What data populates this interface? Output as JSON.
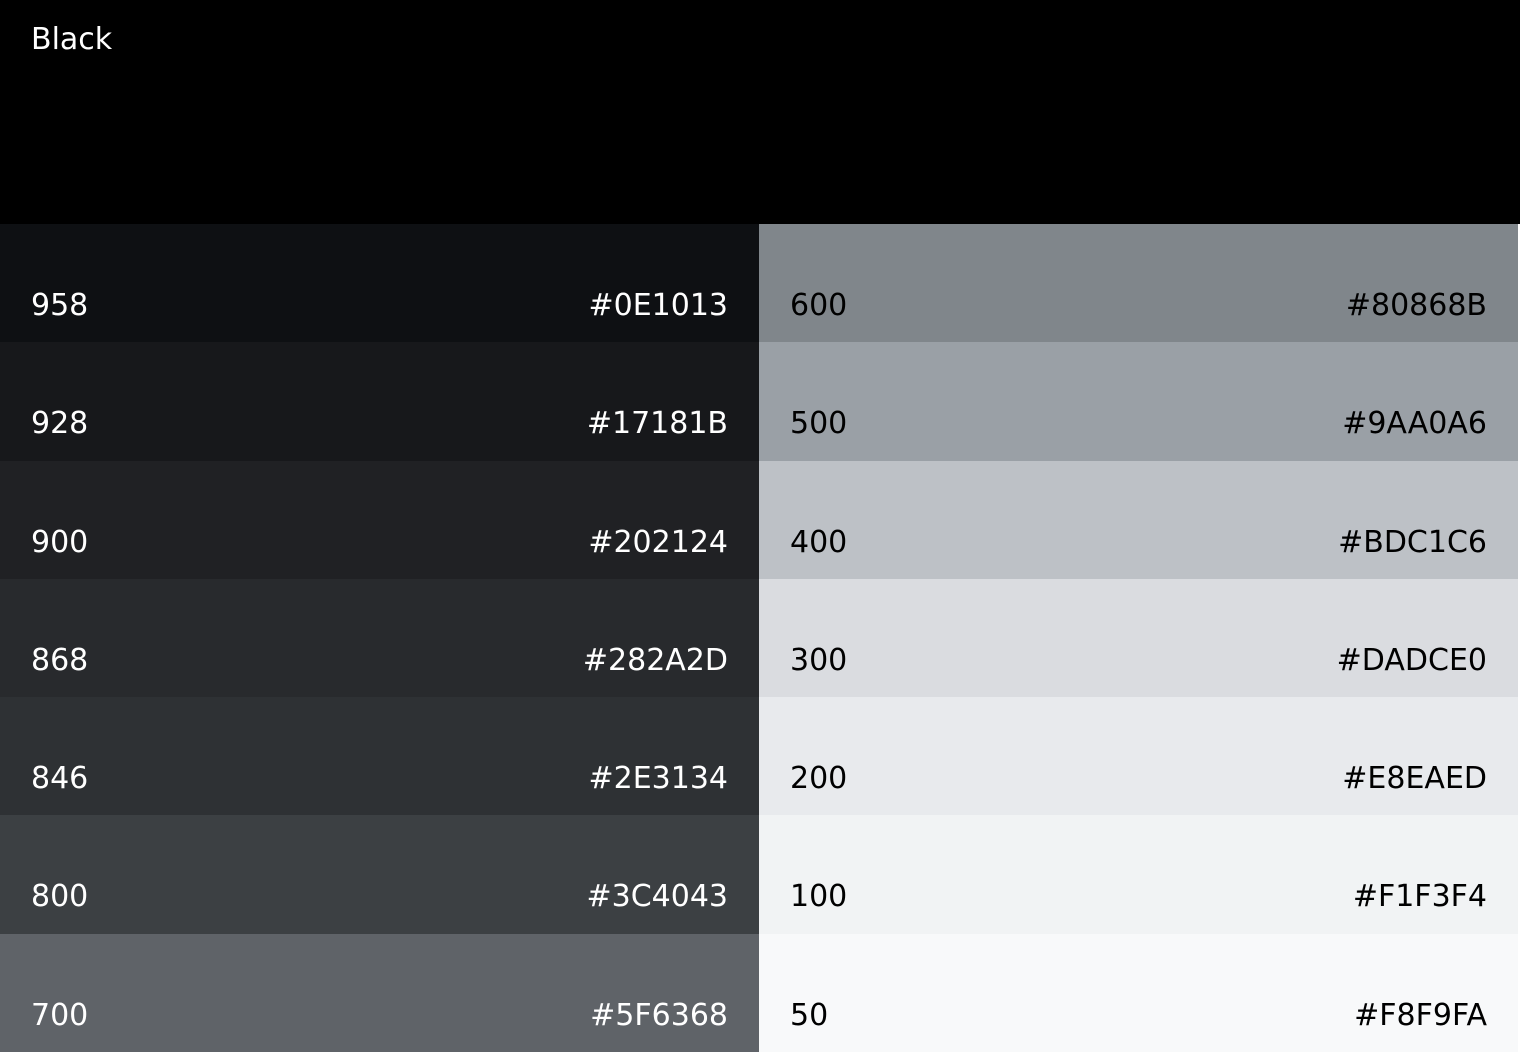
{
  "header": {
    "title": "Black",
    "color": "#000000"
  },
  "left": [
    {
      "name": "958",
      "hex": "#0E1013",
      "text": "#FFFFFF"
    },
    {
      "name": "928",
      "hex": "#17181B",
      "text": "#FFFFFF"
    },
    {
      "name": "900",
      "hex": "#202124",
      "text": "#FFFFFF"
    },
    {
      "name": "868",
      "hex": "#282A2D",
      "text": "#FFFFFF"
    },
    {
      "name": "846",
      "hex": "#2E3134",
      "text": "#FFFFFF"
    },
    {
      "name": "800",
      "hex": "#3C4043",
      "text": "#FFFFFF"
    },
    {
      "name": "700",
      "hex": "#5F6368",
      "text": "#FFFFFF"
    }
  ],
  "right": [
    {
      "name": "600",
      "hex": "#80868B",
      "text": "#000000"
    },
    {
      "name": "500",
      "hex": "#9AA0A6",
      "text": "#000000"
    },
    {
      "name": "400",
      "hex": "#BDC1C6",
      "text": "#000000"
    },
    {
      "name": "300",
      "hex": "#DADCE0",
      "text": "#000000"
    },
    {
      "name": "200",
      "hex": "#E8EAED",
      "text": "#000000"
    },
    {
      "name": "100",
      "hex": "#F1F3F4",
      "text": "#000000"
    },
    {
      "name": "50",
      "hex": "#F8F9FA",
      "text": "#000000"
    }
  ]
}
